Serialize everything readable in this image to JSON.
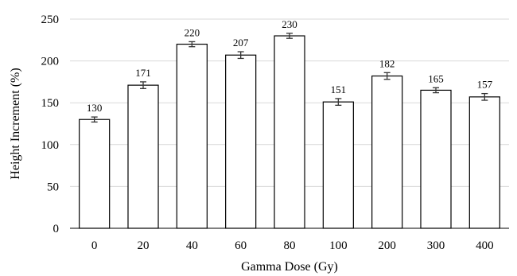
{
  "chart_data": {
    "type": "bar",
    "title": "",
    "xlabel": "Gamma Dose (Gy)",
    "ylabel": "Height Increment (%)",
    "categories": [
      "0",
      "20",
      "40",
      "60",
      "80",
      "100",
      "200",
      "300",
      "400"
    ],
    "values": [
      130,
      171,
      220,
      207,
      230,
      151,
      182,
      165,
      157
    ],
    "value_labels": [
      "130",
      "171",
      "220",
      "207",
      "230",
      "151",
      "182",
      "165",
      "157"
    ],
    "errors": [
      3,
      4,
      3,
      4,
      3,
      4,
      4,
      3,
      4
    ],
    "ylim": [
      0,
      250
    ],
    "yticks": [
      "0",
      "50",
      "100",
      "150",
      "200",
      "250"
    ],
    "grid": "horizontal",
    "legend": "none",
    "colors": {
      "bar_fill": "#ffffff",
      "bar_stroke": "#000000",
      "grid": "#d9d9d9"
    }
  }
}
